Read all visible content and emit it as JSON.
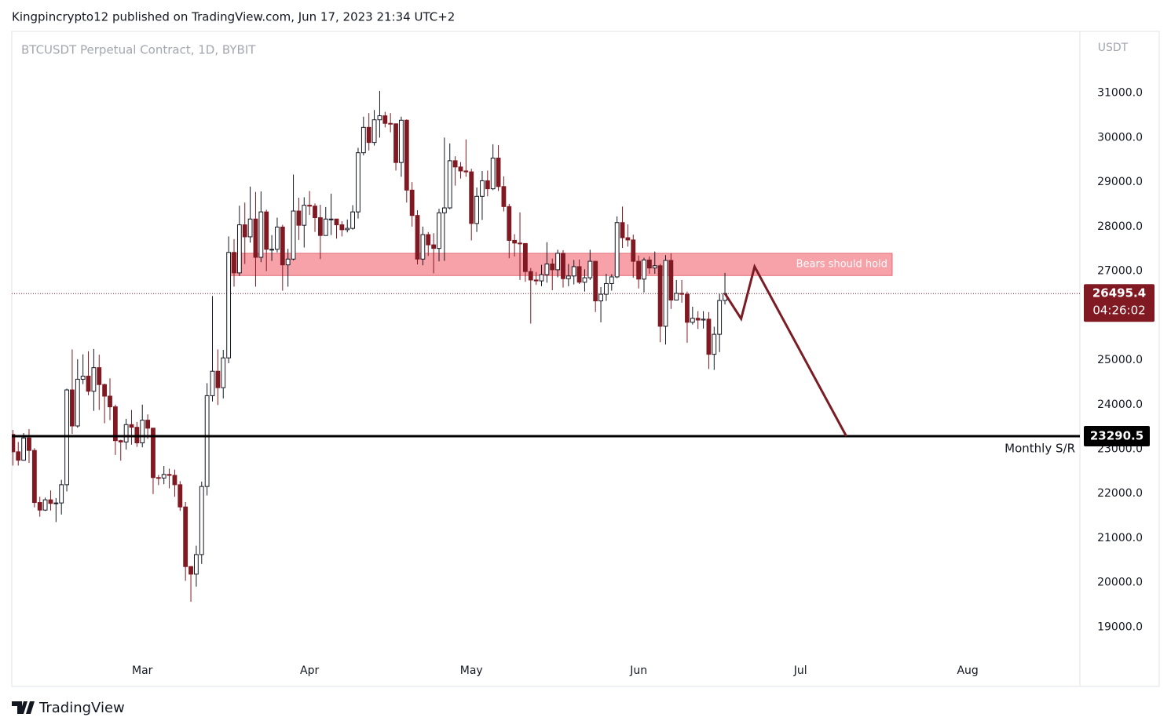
{
  "header": {
    "publisher": "Kingpincrypto12 published on TradingView.com, Jun 17, 2023 21:34 UTC+2"
  },
  "chart_data": {
    "type": "candlestick",
    "title": "BTCUSDT Perpetual Contract, 1D, BYBIT",
    "y_axis_label": "USDT",
    "up_color": "#ffffff",
    "down_color": "#801922",
    "edge_color": "#131722",
    "open": [
      23330,
      22940,
      22750,
      23250,
      22970,
      21800,
      21630,
      21860,
      21780,
      21790,
      22200,
      24330,
      23520,
      24570,
      24640,
      24300,
      24830,
      24450,
      24190,
      23950,
      23190,
      23160,
      23550,
      23490,
      23140,
      23650,
      23470,
      22360,
      22350,
      22430,
      22410,
      22200,
      21700,
      20360,
      20190,
      20630,
      22160,
      24200,
      24750,
      24380,
      25050,
      27420,
      26960,
      28040,
      27770,
      28170,
      27310,
      28330,
      27490,
      27490,
      27990,
      27140,
      27270,
      28350,
      28030,
      28480,
      28460,
      28200,
      27800,
      28170,
      28170,
      28040,
      27930,
      27960,
      28330,
      29660,
      30230,
      29890,
      30400,
      30490,
      30320,
      30310,
      29440,
      30390,
      28820,
      28250,
      27270,
      27820,
      27590,
      27510,
      28310,
      28420,
      29480,
      29340,
      29250,
      29230,
      28070,
      28680,
      29030,
      28850,
      29540,
      28900,
      28450,
      27690,
      27630,
      27620,
      26990,
      26800,
      26780,
      26920,
      27160,
      27030,
      27400,
      26830,
      26890,
      27100,
      26750,
      26850,
      27220,
      26330,
      26480,
      26720,
      26870,
      28090,
      27750,
      27700,
      27220,
      26820,
      27250,
      27070,
      27120,
      25760,
      27240,
      26350,
      26500,
      26480,
      25850,
      25940,
      25900,
      25920,
      25130,
      25580,
      26340
    ],
    "high": [
      23430,
      23160,
      23360,
      23450,
      23020,
      21930,
      21910,
      22070,
      21900,
      22310,
      24360,
      25240,
      25020,
      25130,
      25200,
      25250,
      25120,
      24470,
      24590,
      24000,
      23210,
      23680,
      23880,
      23610,
      24000,
      23780,
      23480,
      22420,
      22620,
      22560,
      22540,
      22280,
      21810,
      20370,
      20830,
      22270,
      24480,
      26440,
      25240,
      25230,
      27780,
      27720,
      28470,
      28540,
      28900,
      28780,
      28790,
      28380,
      27810,
      28200,
      28040,
      27500,
      29170,
      28650,
      28660,
      28800,
      28520,
      28490,
      28440,
      28740,
      28170,
      28120,
      28160,
      28480,
      29770,
      30470,
      30550,
      30620,
      31050,
      30580,
      30550,
      30320,
      30470,
      30410,
      29000,
      28370,
      28000,
      27880,
      27850,
      28400,
      30000,
      29870,
      29580,
      29450,
      29960,
      29300,
      28880,
      29250,
      29260,
      29850,
      29830,
      29130,
      28510,
      27830,
      28320,
      27620,
      27070,
      26980,
      27140,
      27650,
      27280,
      27480,
      27470,
      27160,
      27250,
      27260,
      27040,
      27480,
      27230,
      26640,
      26940,
      26930,
      28230,
      28450,
      28050,
      27820,
      27350,
      27300,
      27330,
      27440,
      27160,
      27360,
      27400,
      26800,
      26800,
      26540,
      26200,
      26100,
      26100,
      26080,
      25750,
      26490,
      26960
    ],
    "low": [
      22630,
      22630,
      22740,
      22690,
      21690,
      21480,
      21610,
      21620,
      21360,
      21530,
      22050,
      23340,
      23480,
      24460,
      24210,
      23860,
      23880,
      23580,
      23650,
      22870,
      22740,
      22990,
      23100,
      23050,
      23040,
      23230,
      21990,
      22190,
      22210,
      22120,
      21930,
      21610,
      20040,
      19570,
      19910,
      20420,
      21960,
      24070,
      23990,
      24140,
      24930,
      26650,
      26890,
      27160,
      27640,
      26650,
      27200,
      27000,
      27230,
      27420,
      26560,
      26650,
      27240,
      27700,
      27530,
      28260,
      27880,
      27270,
      27800,
      27810,
      27730,
      27780,
      27870,
      27930,
      28180,
      29600,
      29710,
      29820,
      30000,
      30230,
      30120,
      29260,
      29120,
      28540,
      28000,
      27150,
      27130,
      27340,
      26950,
      27220,
      27230,
      28390,
      28920,
      29080,
      29120,
      27690,
      27880,
      28150,
      28680,
      28820,
      28800,
      28340,
      27290,
      27330,
      26800,
      26760,
      25820,
      26690,
      26660,
      26740,
      26570,
      26860,
      26630,
      26660,
      26700,
      26710,
      26540,
      26800,
      26080,
      25850,
      26330,
      26560,
      26840,
      27520,
      27550,
      26850,
      26610,
      26520,
      26940,
      26940,
      25400,
      25350,
      26150,
      26360,
      26290,
      25390,
      25800,
      25700,
      25710,
      24800,
      24780,
      25180,
      26250
    ],
    "close": [
      22940,
      22750,
      23250,
      22970,
      21800,
      21630,
      21860,
      21780,
      21790,
      22200,
      24330,
      23520,
      24570,
      24640,
      24300,
      24830,
      24450,
      24190,
      23950,
      23190,
      23160,
      23550,
      23490,
      23140,
      23650,
      23470,
      22360,
      22350,
      22430,
      22410,
      22200,
      21700,
      20360,
      20190,
      20630,
      22160,
      24200,
      24750,
      24380,
      25050,
      27420,
      26960,
      28040,
      27770,
      28170,
      27310,
      28330,
      27490,
      27490,
      27990,
      27140,
      27270,
      28350,
      28030,
      28480,
      28460,
      28200,
      27800,
      28170,
      28170,
      28040,
      27930,
      27960,
      28330,
      29660,
      30230,
      29890,
      30400,
      30490,
      30320,
      30310,
      29440,
      30390,
      28820,
      28250,
      27270,
      27820,
      27590,
      27510,
      28310,
      28420,
      29480,
      29340,
      29250,
      29230,
      28070,
      28680,
      29030,
      28850,
      29540,
      28900,
      28450,
      27690,
      27630,
      27620,
      26990,
      26800,
      26780,
      26920,
      27160,
      27030,
      27400,
      26830,
      26890,
      27100,
      26750,
      26850,
      27220,
      26330,
      26480,
      26720,
      26870,
      28090,
      27750,
      27700,
      27220,
      26820,
      27250,
      27070,
      27120,
      25760,
      27240,
      26350,
      26500,
      26480,
      25850,
      25940,
      25900,
      25920,
      25130,
      25580,
      26340,
      26495.4
    ],
    "xlim": [
      -0.2,
      197.8
    ],
    "xticks": [
      {
        "value": 24,
        "label": "Mar"
      },
      {
        "value": 55,
        "label": "Apr"
      },
      {
        "value": 85,
        "label": "May"
      },
      {
        "value": 116,
        "label": "Jun"
      },
      {
        "value": 146,
        "label": "Jul"
      },
      {
        "value": 177,
        "label": "Aug"
      }
    ],
    "ylim": [
      17667,
      32387
    ],
    "yticks": [
      {
        "value": 19000,
        "label": "19000.0"
      },
      {
        "value": 20000,
        "label": "20000.0"
      },
      {
        "value": 21000,
        "label": "21000.0"
      },
      {
        "value": 22000,
        "label": "22000.0"
      },
      {
        "value": 23000,
        "label": "23000.0"
      },
      {
        "value": 24000,
        "label": "24000.0"
      },
      {
        "value": 25000,
        "label": "25000.0"
      },
      {
        "value": 26000,
        "label": "26000.0"
      },
      {
        "value": 27000,
        "label": "27000.0"
      },
      {
        "value": 28000,
        "label": "28000.0"
      },
      {
        "value": 29000,
        "label": "29000.0"
      },
      {
        "value": 30000,
        "label": "30000.0"
      },
      {
        "value": 31000,
        "label": "31000.0"
      }
    ],
    "last_price": {
      "value": 26495.4,
      "countdown": "04:26:02",
      "color": "#801922"
    },
    "level": {
      "value": 23290.5,
      "label": "Monthly S/R",
      "color": "#000000"
    },
    "zone": {
      "low": 26900,
      "high": 27400,
      "x": [
        40,
        163
      ],
      "label": "Bears should hold",
      "color": "#f7a1a8"
    },
    "projection": {
      "x": [
        132,
        135,
        137.5,
        154.5
      ],
      "y": [
        26495.4,
        25930,
        27100,
        23290.5
      ],
      "color": "#7b1c25"
    }
  },
  "footer": {
    "brand": "TradingView"
  }
}
